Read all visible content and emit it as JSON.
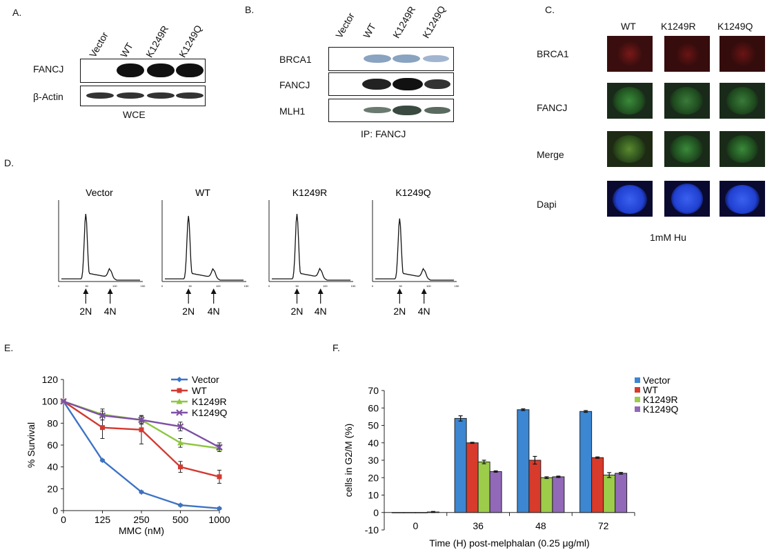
{
  "panelA": {
    "letter": "A.",
    "lanes": [
      "Vector",
      "WT",
      "K1249R",
      "K1249Q"
    ],
    "rows": [
      "FANCJ",
      "β-Actin"
    ],
    "caption": "WCE"
  },
  "panelB": {
    "letter": "B.",
    "lanes": [
      "Vector",
      "WT",
      "K1249R",
      "K1249Q"
    ],
    "rows": [
      "BRCA1",
      "FANCJ",
      "MLH1"
    ],
    "caption": "IP: FANCJ"
  },
  "panelC": {
    "letter": "C.",
    "columns": [
      "WT",
      "K1249R",
      "K1249Q"
    ],
    "rows": [
      "BRCA1",
      "FANCJ",
      "Merge",
      "Dapi"
    ],
    "caption": "1mM Hu",
    "colors": {
      "brca1": "#d02030",
      "fancj": "#3ac040",
      "merge": "#c8d030",
      "dapi": "#2040e0"
    }
  },
  "panelD": {
    "letter": "D.",
    "histograms": [
      {
        "title": "Vector",
        "markers": [
          "2N",
          "4N"
        ]
      },
      {
        "title": "WT",
        "markers": [
          "2N",
          "4N"
        ]
      },
      {
        "title": "K1249R",
        "markers": [
          "2N",
          "4N"
        ]
      },
      {
        "title": "K1249Q",
        "markers": [
          "2N",
          "4N"
        ]
      }
    ],
    "tick_labels": [
      "0",
      "50",
      "100",
      "150"
    ]
  },
  "panelE": {
    "letter": "E.",
    "chart_data": {
      "type": "line",
      "xlabel": "MMC (nM)",
      "ylabel": "% Survival",
      "categories": [
        "0",
        "125",
        "250",
        "500",
        "1000"
      ],
      "ylim": [
        0,
        120
      ],
      "yticks": [
        "0",
        "20",
        "40",
        "60",
        "80",
        "100",
        "120"
      ],
      "legend": "top-right",
      "series": [
        {
          "name": "Vector",
          "color": "#3d73c6",
          "marker": "diamond",
          "values": [
            100,
            46,
            17,
            5,
            2
          ],
          "err": [
            0,
            1,
            1,
            1,
            1
          ]
        },
        {
          "name": "WT",
          "color": "#d23a32",
          "marker": "square",
          "values": [
            100,
            76,
            74,
            40,
            31
          ],
          "err": [
            0,
            10,
            13,
            5,
            6
          ]
        },
        {
          "name": "K1249R",
          "color": "#8ec640",
          "marker": "triangle",
          "values": [
            100,
            88,
            83,
            62,
            57
          ],
          "err": [
            0,
            5,
            4,
            4,
            3
          ]
        },
        {
          "name": "K1249Q",
          "color": "#7e4fa5",
          "marker": "x",
          "values": [
            100,
            87,
            83,
            77,
            58
          ],
          "err": [
            0,
            4,
            3,
            4,
            4
          ]
        }
      ]
    }
  },
  "panelF": {
    "letter": "F.",
    "chart_data": {
      "type": "bar",
      "xlabel": "Time (H) post-melphalan (0.25 μg/ml)",
      "ylabel": "cells in G2/M (%)",
      "categories": [
        "0",
        "36",
        "48",
        "72"
      ],
      "ylim": [
        -10,
        70
      ],
      "yticks": [
        "-10",
        "0",
        "10",
        "20",
        "30",
        "40",
        "50",
        "60",
        "70"
      ],
      "legend": "top-right",
      "series": [
        {
          "name": "Vector",
          "color": "#3c86d2",
          "values": [
            0,
            54,
            59,
            58
          ],
          "err": [
            0,
            1.5,
            0.5,
            0.5
          ]
        },
        {
          "name": "WT",
          "color": "#d83a2c",
          "values": [
            0,
            40,
            30,
            31.5
          ],
          "err": [
            0,
            0.3,
            2.2,
            0.4
          ]
        },
        {
          "name": "K1249R",
          "color": "#9ccc4a",
          "values": [
            0,
            29,
            20,
            21.5
          ],
          "err": [
            0,
            1,
            0.5,
            1.4
          ]
        },
        {
          "name": "K1249Q",
          "color": "#9268b8",
          "values": [
            0.3,
            23.5,
            20.5,
            22.5
          ],
          "err": [
            0.3,
            0.4,
            0.4,
            0.5
          ]
        }
      ]
    }
  }
}
